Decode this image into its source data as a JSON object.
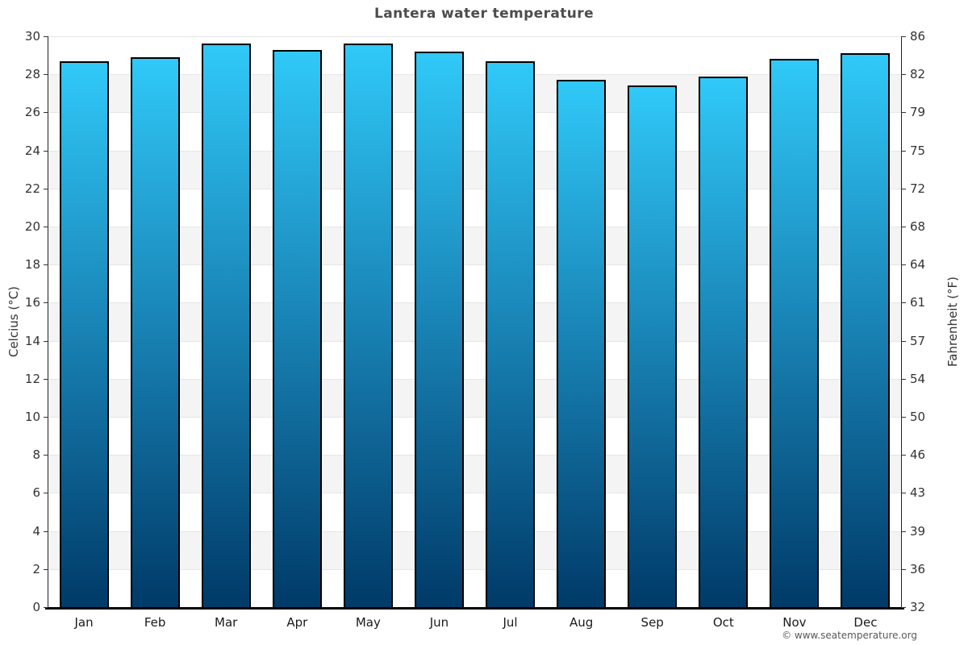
{
  "chart_data": {
    "type": "bar",
    "title": "Lantera water temperature",
    "categories": [
      "Jan",
      "Feb",
      "Mar",
      "Apr",
      "May",
      "Jun",
      "Jul",
      "Aug",
      "Sep",
      "Oct",
      "Nov",
      "Dec"
    ],
    "values": [
      28.7,
      28.9,
      29.6,
      29.3,
      29.6,
      29.2,
      28.7,
      27.7,
      27.4,
      27.9,
      28.8,
      29.1
    ],
    "unit": "°C",
    "xlabel": "",
    "ylabel_left": "Celcius (°C)",
    "ylabel_right": "Fahrenheit (°F)",
    "ylim": [
      0,
      30
    ],
    "celsius_ticks": [
      30,
      28,
      26,
      24,
      22,
      20,
      18,
      16,
      14,
      12,
      10,
      8,
      6,
      4,
      2,
      0
    ],
    "fahrenheit_ticks": [
      86,
      82,
      79,
      75,
      72,
      68,
      64,
      61,
      57,
      54,
      50,
      46,
      43,
      39,
      36,
      32
    ],
    "grid": "alternating-horizontal-bands-every-2C",
    "legend": "none"
  },
  "footer": {
    "copyright": "© www.seatemperature.org"
  },
  "colors": {
    "bar_gradient_top": "#30c9f8",
    "bar_gradient_bottom": "#003a68",
    "bar_border": "#000000",
    "band_gray": "#f4f4f4",
    "gridline": "#e6e6e6",
    "axis_line": "#222222",
    "title_text": "#4d4d4d",
    "tick_text": "#333333",
    "month_text": "#1a1a1a",
    "footer_text": "#595959"
  }
}
